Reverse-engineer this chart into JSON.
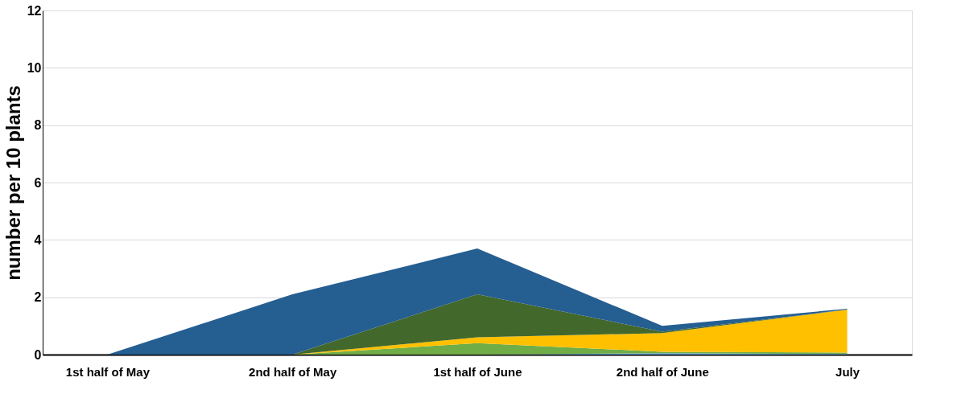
{
  "chart_data": {
    "type": "area",
    "stacked": true,
    "ylabel": "number per 10 plants",
    "categories": [
      "1st half of May",
      "2nd half of May",
      "1st half of June",
      "2nd half of June",
      "July"
    ],
    "series": [
      {
        "color": "#5b9bd5",
        "values": [
          0,
          0,
          0,
          0.05,
          0.02
        ]
      },
      {
        "color": "#70ad47",
        "values": [
          0,
          0,
          0.4,
          0.05,
          0.05
        ]
      },
      {
        "color": "#ffc000",
        "values": [
          0,
          0,
          0.2,
          0.65,
          1.5
        ]
      },
      {
        "color": "#43682b",
        "values": [
          0,
          0,
          1.5,
          0.05,
          0
        ]
      },
      {
        "color": "#255e91",
        "values": [
          0,
          2.1,
          1.6,
          0.2,
          0.03
        ]
      }
    ],
    "ylim": [
      0,
      12
    ],
    "yticks": [
      0,
      2,
      4,
      6,
      8,
      10,
      12
    ],
    "grid": "y",
    "legend": false
  }
}
